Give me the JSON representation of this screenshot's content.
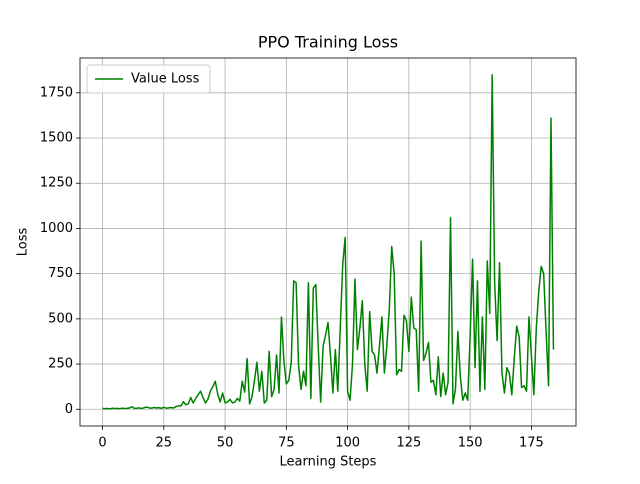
{
  "chart_data": {
    "type": "line",
    "title": "PPO Training Loss",
    "x_label": "Learning Steps",
    "y_label": "Loss",
    "x": [
      0,
      1,
      2,
      3,
      4,
      5,
      6,
      7,
      8,
      9,
      10,
      11,
      12,
      13,
      14,
      15,
      16,
      17,
      18,
      19,
      20,
      21,
      22,
      23,
      24,
      25,
      26,
      27,
      28,
      29,
      30,
      31,
      32,
      33,
      34,
      35,
      36,
      37,
      38,
      39,
      40,
      41,
      42,
      43,
      44,
      45,
      46,
      47,
      48,
      49,
      50,
      51,
      52,
      53,
      54,
      55,
      56,
      57,
      58,
      59,
      60,
      61,
      62,
      63,
      64,
      65,
      66,
      67,
      68,
      69,
      70,
      71,
      72,
      73,
      74,
      75,
      76,
      77,
      78,
      79,
      80,
      81,
      82,
      83,
      84,
      85,
      86,
      87,
      88,
      89,
      90,
      91,
      92,
      93,
      94,
      95,
      96,
      97,
      98,
      99,
      100,
      101,
      102,
      103,
      104,
      105,
      106,
      107,
      108,
      109,
      110,
      111,
      112,
      113,
      114,
      115,
      116,
      117,
      118,
      119,
      120,
      121,
      122,
      123,
      124,
      125,
      126,
      127,
      128,
      129,
      130,
      131,
      132,
      133,
      134,
      135,
      136,
      137,
      138,
      139,
      140,
      141,
      142,
      143,
      144,
      145,
      146,
      147,
      148,
      149,
      150,
      151,
      152,
      153,
      154,
      155,
      156,
      157,
      158,
      159,
      160,
      161,
      162,
      163,
      164,
      165,
      166,
      167,
      168,
      169,
      170,
      171,
      172,
      173,
      174,
      175,
      176,
      177,
      178,
      179,
      180,
      181,
      182,
      183,
      184
    ],
    "series": [
      {
        "name": "Value Loss",
        "color": "#008000",
        "values": [
          5,
          3,
          4,
          2,
          6,
          4,
          5,
          3,
          6,
          4,
          5,
          7,
          14,
          5,
          6,
          8,
          4,
          9,
          12,
          8,
          6,
          10,
          7,
          9,
          5,
          11,
          6,
          8,
          10,
          7,
          15,
          20,
          18,
          42,
          25,
          30,
          65,
          35,
          60,
          80,
          100,
          65,
          35,
          55,
          100,
          125,
          155,
          85,
          40,
          90,
          35,
          40,
          55,
          35,
          40,
          60,
          45,
          155,
          95,
          280,
          30,
          70,
          160,
          260,
          100,
          210,
          35,
          50,
          320,
          70,
          110,
          300,
          90,
          510,
          270,
          140,
          160,
          260,
          710,
          700,
          240,
          110,
          210,
          130,
          700,
          60,
          670,
          690,
          350,
          40,
          350,
          410,
          480,
          300,
          90,
          330,
          100,
          450,
          800,
          950,
          100,
          50,
          250,
          720,
          330,
          450,
          600,
          250,
          100,
          540,
          320,
          300,
          200,
          350,
          510,
          200,
          350,
          550,
          900,
          750,
          190,
          220,
          210,
          520,
          490,
          320,
          620,
          450,
          440,
          100,
          930,
          270,
          310,
          370,
          150,
          160,
          80,
          290,
          70,
          200,
          80,
          150,
          1060,
          30,
          110,
          430,
          180,
          50,
          90,
          50,
          400,
          830,
          230,
          710,
          100,
          510,
          110,
          820,
          530,
          1850,
          700,
          380,
          810,
          200,
          90,
          230,
          200,
          80,
          280,
          460,
          400,
          120,
          130,
          100,
          510,
          300,
          80,
          450,
          650,
          790,
          750,
          430,
          130,
          1610,
          330
        ]
      }
    ],
    "xlim": [
      -9.2,
      193.2
    ],
    "ylim": [
      -92.5,
      1942.5
    ],
    "xticks": [
      0,
      25,
      50,
      75,
      100,
      125,
      150,
      175
    ],
    "yticks": [
      0,
      250,
      500,
      750,
      1000,
      1250,
      1500,
      1750
    ],
    "grid": true,
    "legend": "upper left"
  }
}
